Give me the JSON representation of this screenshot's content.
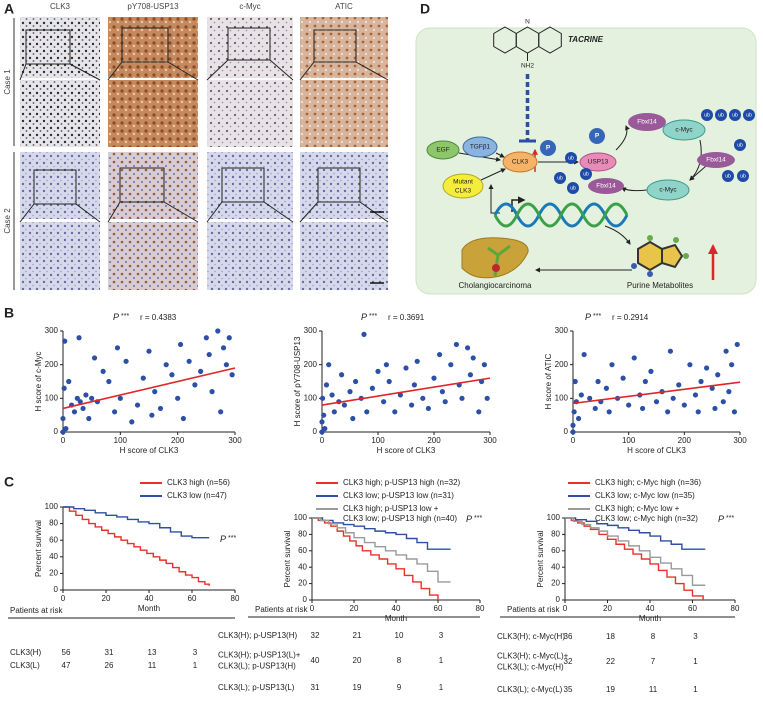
{
  "panel_labels": [
    "A",
    "B",
    "C",
    "D"
  ],
  "panel_a": {
    "columns": [
      "CLK3",
      "pY708-USP13",
      "c-Myc",
      "ATIC"
    ],
    "rows": [
      "Case 1",
      "Case 2"
    ]
  },
  "panel_d": {
    "n_atom": "N",
    "nh2": "NH2",
    "tacrine": "TACRINE",
    "labels": [
      "EGF",
      "TGFβ1",
      "CLK3",
      "Mutant",
      "CLK3",
      "P",
      "P",
      "USP13",
      "Fbxl14",
      "c-Myc",
      "Fbxl14",
      "c-Myc",
      "Fbxl14"
    ],
    "ub": [
      "ub",
      "ub",
      "ub",
      "ub",
      "ub",
      "ub",
      "ub",
      "ub",
      "ub",
      "ub",
      "ub"
    ],
    "captions": [
      "Cholangiocarcinoma",
      "Purine Metabolites"
    ]
  },
  "chart_data": [
    {
      "type": "scatter",
      "p_label": "P",
      "p_stars": "***",
      "r_label": "r = 0.4383",
      "xlabel": "H score of CLK3",
      "ylabel": "H score of c-Myc",
      "xlim": [
        0,
        300
      ],
      "ylim": [
        0,
        300
      ],
      "xticks": [
        0,
        100,
        200,
        300
      ],
      "yticks": [
        0,
        100,
        200,
        300
      ],
      "color": "#2b50a6",
      "fit_color": "#e0252a",
      "x": [
        0,
        0,
        2,
        3,
        5,
        10,
        15,
        20,
        25,
        28,
        30,
        35,
        40,
        45,
        50,
        55,
        60,
        70,
        80,
        90,
        95,
        100,
        110,
        120,
        130,
        140,
        150,
        155,
        160,
        170,
        180,
        190,
        200,
        205,
        210,
        220,
        230,
        240,
        250,
        255,
        260,
        270,
        275,
        280,
        285,
        290,
        295
      ],
      "y": [
        0,
        40,
        130,
        270,
        10,
        150,
        80,
        60,
        100,
        280,
        90,
        70,
        110,
        40,
        100,
        220,
        90,
        180,
        150,
        60,
        250,
        100,
        210,
        30,
        80,
        160,
        240,
        50,
        120,
        70,
        200,
        170,
        100,
        260,
        40,
        210,
        140,
        180,
        280,
        230,
        120,
        300,
        60,
        250,
        200,
        280,
        170
      ],
      "fit_x": [
        0,
        300
      ],
      "fit_y": [
        70,
        190
      ]
    },
    {
      "type": "scatter",
      "p_label": "P",
      "p_stars": "***",
      "r_label": "r = 0.3691",
      "xlabel": "H score of CLK3",
      "ylabel": "H score of pY708-USP13",
      "xlim": [
        0,
        300
      ],
      "ylim": [
        0,
        300
      ],
      "xticks": [
        0,
        100,
        200,
        300
      ],
      "yticks": [
        0,
        100,
        200,
        300
      ],
      "color": "#2b50a6",
      "fit_color": "#e0252a",
      "x": [
        0,
        0,
        1,
        3,
        5,
        8,
        12,
        18,
        22,
        30,
        35,
        40,
        50,
        55,
        60,
        70,
        75,
        80,
        90,
        100,
        110,
        115,
        120,
        130,
        140,
        150,
        160,
        165,
        170,
        180,
        190,
        200,
        210,
        215,
        220,
        230,
        240,
        245,
        250,
        260,
        265,
        270,
        280,
        285,
        290,
        295
      ],
      "y": [
        0,
        30,
        100,
        50,
        10,
        140,
        200,
        110,
        60,
        90,
        170,
        80,
        120,
        40,
        150,
        100,
        290,
        60,
        130,
        180,
        90,
        200,
        150,
        60,
        110,
        190,
        80,
        140,
        210,
        100,
        70,
        160,
        230,
        120,
        90,
        200,
        260,
        140,
        100,
        250,
        170,
        220,
        60,
        150,
        200,
        100
      ],
      "fit_x": [
        0,
        300
      ],
      "fit_y": [
        80,
        160
      ]
    },
    {
      "type": "scatter",
      "p_label": "P",
      "p_stars": "***",
      "r_label": "r = 0.2914",
      "xlabel": "H score of CLK3",
      "ylabel": "H score of ATIC",
      "xlim": [
        0,
        300
      ],
      "ylim": [
        0,
        300
      ],
      "xticks": [
        0,
        100,
        200,
        300
      ],
      "yticks": [
        0,
        100,
        200,
        300
      ],
      "color": "#2b50a6",
      "fit_color": "#e0252a",
      "x": [
        0,
        0,
        2,
        4,
        6,
        10,
        15,
        20,
        30,
        40,
        45,
        50,
        60,
        65,
        70,
        80,
        90,
        100,
        110,
        120,
        125,
        130,
        140,
        150,
        160,
        170,
        175,
        180,
        190,
        200,
        210,
        220,
        225,
        230,
        240,
        250,
        255,
        260,
        270,
        275,
        280,
        285,
        290,
        295
      ],
      "y": [
        0,
        20,
        60,
        150,
        90,
        40,
        110,
        230,
        100,
        70,
        150,
        90,
        130,
        60,
        200,
        100,
        160,
        80,
        220,
        110,
        70,
        150,
        180,
        90,
        120,
        60,
        240,
        100,
        140,
        80,
        200,
        110,
        60,
        150,
        190,
        130,
        70,
        170,
        90,
        240,
        120,
        200,
        60,
        260
      ],
      "fit_x": [
        0,
        300
      ],
      "fit_y": [
        85,
        148
      ]
    },
    {
      "type": "line",
      "step": true,
      "p_label": "P",
      "p_stars": "***",
      "xlabel": "Month",
      "ylabel": "Percent survival",
      "xlim": [
        0,
        80
      ],
      "ylim": [
        0,
        100
      ],
      "xticks": [
        0,
        20,
        40,
        60,
        80
      ],
      "yticks": [
        0,
        20,
        40,
        60,
        80,
        100
      ],
      "series": [
        {
          "name": "CLK3 high (n=56)",
          "color": "#e8312a",
          "x": [
            0,
            3,
            6,
            9,
            12,
            15,
            18,
            21,
            24,
            27,
            30,
            33,
            36,
            39,
            42,
            45,
            48,
            51,
            54,
            57,
            60,
            63,
            66,
            68
          ],
          "values": [
            100,
            95,
            90,
            85,
            80,
            76,
            72,
            68,
            64,
            60,
            56,
            52,
            48,
            44,
            40,
            36,
            32,
            27,
            22,
            18,
            15,
            10,
            7,
            5
          ]
        },
        {
          "name": "CLK3 low (n=47)",
          "color": "#2e4fa3",
          "x": [
            0,
            5,
            10,
            15,
            20,
            25,
            30,
            35,
            40,
            45,
            50,
            55,
            60,
            68
          ],
          "values": [
            100,
            98,
            96,
            93,
            90,
            88,
            85,
            82,
            80,
            75,
            70,
            65,
            63,
            63
          ]
        }
      ],
      "risk_title": "Patients at risk",
      "risk_rows": [
        {
          "label": "CLK3(H)",
          "counts": [
            56,
            31,
            13,
            3
          ]
        },
        {
          "label": "CLK3(L)",
          "counts": [
            47,
            26,
            11,
            1
          ]
        }
      ]
    },
    {
      "type": "line",
      "step": true,
      "p_label": "P",
      "p_stars": "***",
      "xlabel": "Month",
      "ylabel": "Percent survival",
      "xlim": [
        0,
        80
      ],
      "ylim": [
        0,
        100
      ],
      "xticks": [
        0,
        20,
        40,
        60,
        80
      ],
      "yticks": [
        0,
        20,
        40,
        60,
        80,
        100
      ],
      "series": [
        {
          "name": "CLK3 high; p-USP13 high (n=32)",
          "color": "#e8312a",
          "x": [
            0,
            3,
            6,
            9,
            12,
            15,
            18,
            21,
            24,
            28,
            32,
            36,
            40,
            44,
            48,
            52,
            56,
            60
          ],
          "values": [
            100,
            97,
            94,
            90,
            84,
            78,
            72,
            66,
            60,
            55,
            50,
            44,
            38,
            30,
            22,
            14,
            6,
            0
          ]
        },
        {
          "name": "CLK3 low; p-USP13 low (n=31)",
          "color": "#2e4fa3",
          "x": [
            0,
            5,
            10,
            15,
            20,
            25,
            30,
            35,
            40,
            45,
            50,
            55,
            66
          ],
          "values": [
            100,
            97,
            94,
            92,
            90,
            87,
            84,
            82,
            80,
            75,
            70,
            62,
            62
          ]
        },
        {
          "name": [
            "CLK3 high; p-USP13 low +",
            "CLK3 low; p-USP13 high (n=40)"
          ],
          "color": "#9a9a9a",
          "x": [
            0,
            4,
            8,
            12,
            16,
            20,
            25,
            30,
            35,
            40,
            45,
            50,
            55,
            60,
            66
          ],
          "values": [
            100,
            97,
            93,
            88,
            82,
            76,
            70,
            65,
            60,
            55,
            50,
            44,
            35,
            22,
            22
          ]
        }
      ],
      "risk_title": "Patients at risk",
      "risk_rows": [
        {
          "label": "CLK3(H); p-USP13(H)",
          "counts": [
            32,
            21,
            10,
            3
          ]
        },
        {
          "label": [
            "CLK3(H); p-USP13(L)+",
            "CLK3(L); p-USP13(H)"
          ],
          "counts": [
            40,
            20,
            8,
            1
          ]
        },
        {
          "label": "CLK3(L); p-USP13(L)",
          "counts": [
            31,
            19,
            9,
            1
          ]
        }
      ]
    },
    {
      "type": "line",
      "step": true,
      "p_label": "P",
      "p_stars": "***",
      "xlabel": "Month",
      "ylabel": "Percent survival",
      "xlim": [
        0,
        80
      ],
      "ylim": [
        0,
        100
      ],
      "xticks": [
        0,
        20,
        40,
        60,
        80
      ],
      "yticks": [
        0,
        20,
        40,
        60,
        80,
        100
      ],
      "series": [
        {
          "name": "CLK3 high; c-Myc high (n=36)",
          "color": "#e8312a",
          "x": [
            0,
            3,
            6,
            9,
            12,
            16,
            20,
            24,
            28,
            32,
            36,
            40,
            44,
            48,
            52,
            56,
            60,
            65
          ],
          "values": [
            100,
            97,
            94,
            90,
            86,
            80,
            74,
            68,
            62,
            56,
            50,
            44,
            36,
            28,
            20,
            12,
            5,
            0
          ]
        },
        {
          "name": "CLK3 low; c-Myc low (n=35)",
          "color": "#2e4fa3",
          "x": [
            0,
            5,
            10,
            15,
            20,
            25,
            30,
            35,
            40,
            45,
            50,
            55,
            66
          ],
          "values": [
            100,
            98,
            96,
            93,
            91,
            88,
            85,
            82,
            78,
            72,
            68,
            62,
            62
          ]
        },
        {
          "name": [
            "CLK3 high; c-Myc low +",
            "CLK3 low; c-Myc high (n=32)"
          ],
          "color": "#9a9a9a",
          "x": [
            0,
            4,
            8,
            12,
            16,
            20,
            25,
            30,
            35,
            40,
            45,
            50,
            55,
            60,
            66
          ],
          "values": [
            100,
            96,
            92,
            88,
            84,
            78,
            72,
            66,
            60,
            52,
            45,
            38,
            30,
            18,
            18
          ]
        }
      ],
      "risk_title": "Patients at risk",
      "risk_rows": [
        {
          "label": "CLK3(H); c-Myc(H)",
          "counts": [
            36,
            18,
            8,
            3
          ]
        },
        {
          "label": [
            "CLK3(H); c-Myc(L)+",
            "CLK3(L); c-Myc(H)"
          ],
          "counts": [
            32,
            22,
            7,
            1
          ]
        },
        {
          "label": "CLK3(L); c-Myc(L)",
          "counts": [
            35,
            19,
            11,
            1
          ]
        }
      ]
    }
  ]
}
